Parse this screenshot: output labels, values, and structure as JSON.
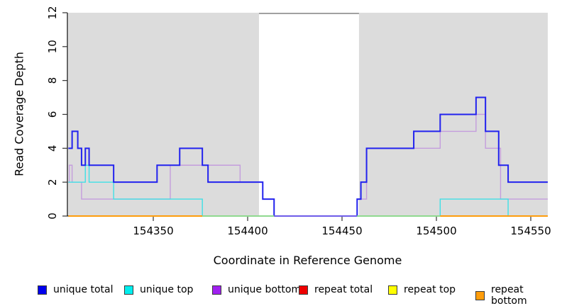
{
  "figure": {
    "x_axis_label": "Coordinate in Reference Genome",
    "y_axis_label": "Read Coverage Depth"
  },
  "legend": {
    "items": [
      {
        "label": "unique total",
        "color": "#0000ee"
      },
      {
        "label": "unique top",
        "color": "#00eeee"
      },
      {
        "label": "unique bottom",
        "color": "#a020f0"
      },
      {
        "label": "repeat total",
        "color": "#ee0000"
      },
      {
        "label": "repeat top",
        "color": "#ffff00"
      },
      {
        "label": "repeat bottom",
        "color": "#ff9d0b"
      }
    ]
  },
  "chart_data": {
    "type": "line",
    "subtype": "step",
    "title": "",
    "xlabel": "Coordinate in Reference Genome",
    "ylabel": "Read Coverage Depth",
    "xlim": [
      154304,
      154559
    ],
    "ylim": [
      0,
      12
    ],
    "x_ticks": [
      154350,
      154400,
      154450,
      154500,
      154550
    ],
    "y_ticks": [
      0,
      2,
      4,
      6,
      8,
      10,
      12
    ],
    "grid": false,
    "legend_position": "bottom",
    "shaded_regions": [
      {
        "x1": 154305,
        "x2": 154406,
        "note": "gray shading left"
      },
      {
        "x1": 154459,
        "x2": 154559,
        "note": "gray shading right"
      }
    ],
    "gap_top_line": {
      "x1": 154406,
      "x2": 154459,
      "y": 12,
      "color": "#8c8c8c"
    },
    "series": [
      {
        "name": "unique total",
        "color": "#2222ee",
        "width": 2,
        "steps": [
          [
            154305,
            4
          ],
          [
            154307,
            5
          ],
          [
            154310,
            4
          ],
          [
            154312,
            3
          ],
          [
            154314,
            4
          ],
          [
            154316,
            3
          ],
          [
            154329,
            2
          ],
          [
            154352,
            3
          ],
          [
            154364,
            4
          ],
          [
            154376,
            3
          ],
          [
            154379,
            2
          ],
          [
            154408,
            1
          ],
          [
            154414,
            0
          ],
          [
            154458,
            1
          ],
          [
            154460,
            2
          ],
          [
            154463,
            4
          ],
          [
            154488,
            5
          ],
          [
            154502,
            6
          ],
          [
            154521,
            7
          ],
          [
            154526,
            5
          ],
          [
            154533,
            3
          ],
          [
            154538,
            2
          ],
          [
            154559,
            2
          ]
        ]
      },
      {
        "name": "unique top",
        "color": "#3fe0e6",
        "width": 1.4,
        "steps": [
          [
            154305,
            2
          ],
          [
            154314,
            3
          ],
          [
            154316,
            2
          ],
          [
            154329,
            1
          ],
          [
            154376,
            0
          ],
          [
            154502,
            1
          ],
          [
            154538,
            0
          ],
          [
            154559,
            0
          ]
        ]
      },
      {
        "name": "unique bottom",
        "color": "#c49ddd",
        "width": 1.4,
        "steps": [
          [
            154305,
            2
          ],
          [
            154305.5,
            3
          ],
          [
            154307,
            2
          ],
          [
            154312,
            1
          ],
          [
            154359,
            3
          ],
          [
            154396,
            2
          ],
          [
            154408,
            1
          ],
          [
            154414,
            0
          ],
          [
            154458,
            1
          ],
          [
            154463,
            4
          ],
          [
            154502,
            5
          ],
          [
            154521,
            6
          ],
          [
            154526,
            4
          ],
          [
            154534,
            1
          ],
          [
            154559,
            1
          ]
        ]
      },
      {
        "name": "repeat total",
        "color": "#ee0000",
        "width": 1.4,
        "steps": []
      },
      {
        "name": "repeat top",
        "color": "#ffff00",
        "width": 1.4,
        "steps": []
      },
      {
        "name": "repeat bottom",
        "color": "#ff9d0b",
        "width": 2,
        "steps": [
          [
            154305,
            0
          ],
          [
            154559,
            0
          ]
        ]
      }
    ],
    "zero_line_visible_segments": [
      {
        "x1": 154305,
        "x2": 154376,
        "color": "#ff9d0b"
      },
      {
        "x1": 154376,
        "x2": 154414,
        "color": "#8fd98f"
      },
      {
        "x1": 154414,
        "x2": 154458,
        "color": "#6e5ce8"
      },
      {
        "x1": 154458,
        "x2": 154502,
        "color": "#8fd98f"
      },
      {
        "x1": 154502,
        "x2": 154559,
        "color": "#ff9d0b"
      }
    ]
  }
}
